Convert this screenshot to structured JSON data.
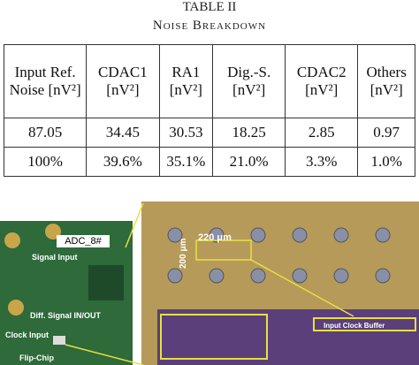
{
  "table_caption": {
    "label": "TABLE II",
    "title": "Noise Breakdown"
  },
  "table": {
    "header": [
      "Input Ref. Noise [nV²]",
      "CDAC1 [nV²]",
      "RA1 [nV²]",
      "Dig.-S. [nV²]",
      "CDAC2 [nV²]",
      "Others [nV²]"
    ],
    "rows": [
      [
        "87.05",
        "34.45",
        "30.53",
        "18.25",
        "2.85",
        "0.97"
      ],
      [
        "100%",
        "39.6%",
        "35.1%",
        "21.0%",
        "3.3%",
        "1.0%"
      ]
    ]
  },
  "photo": {
    "board_labels": [
      "ADC_8#",
      "Signal Input",
      "Diff. Signal IN/OUT",
      "Clock Input",
      "Flip-Chip"
    ],
    "die_labels": [
      "220 μm",
      "200 μm",
      "Input Clock Buffer"
    ]
  }
}
